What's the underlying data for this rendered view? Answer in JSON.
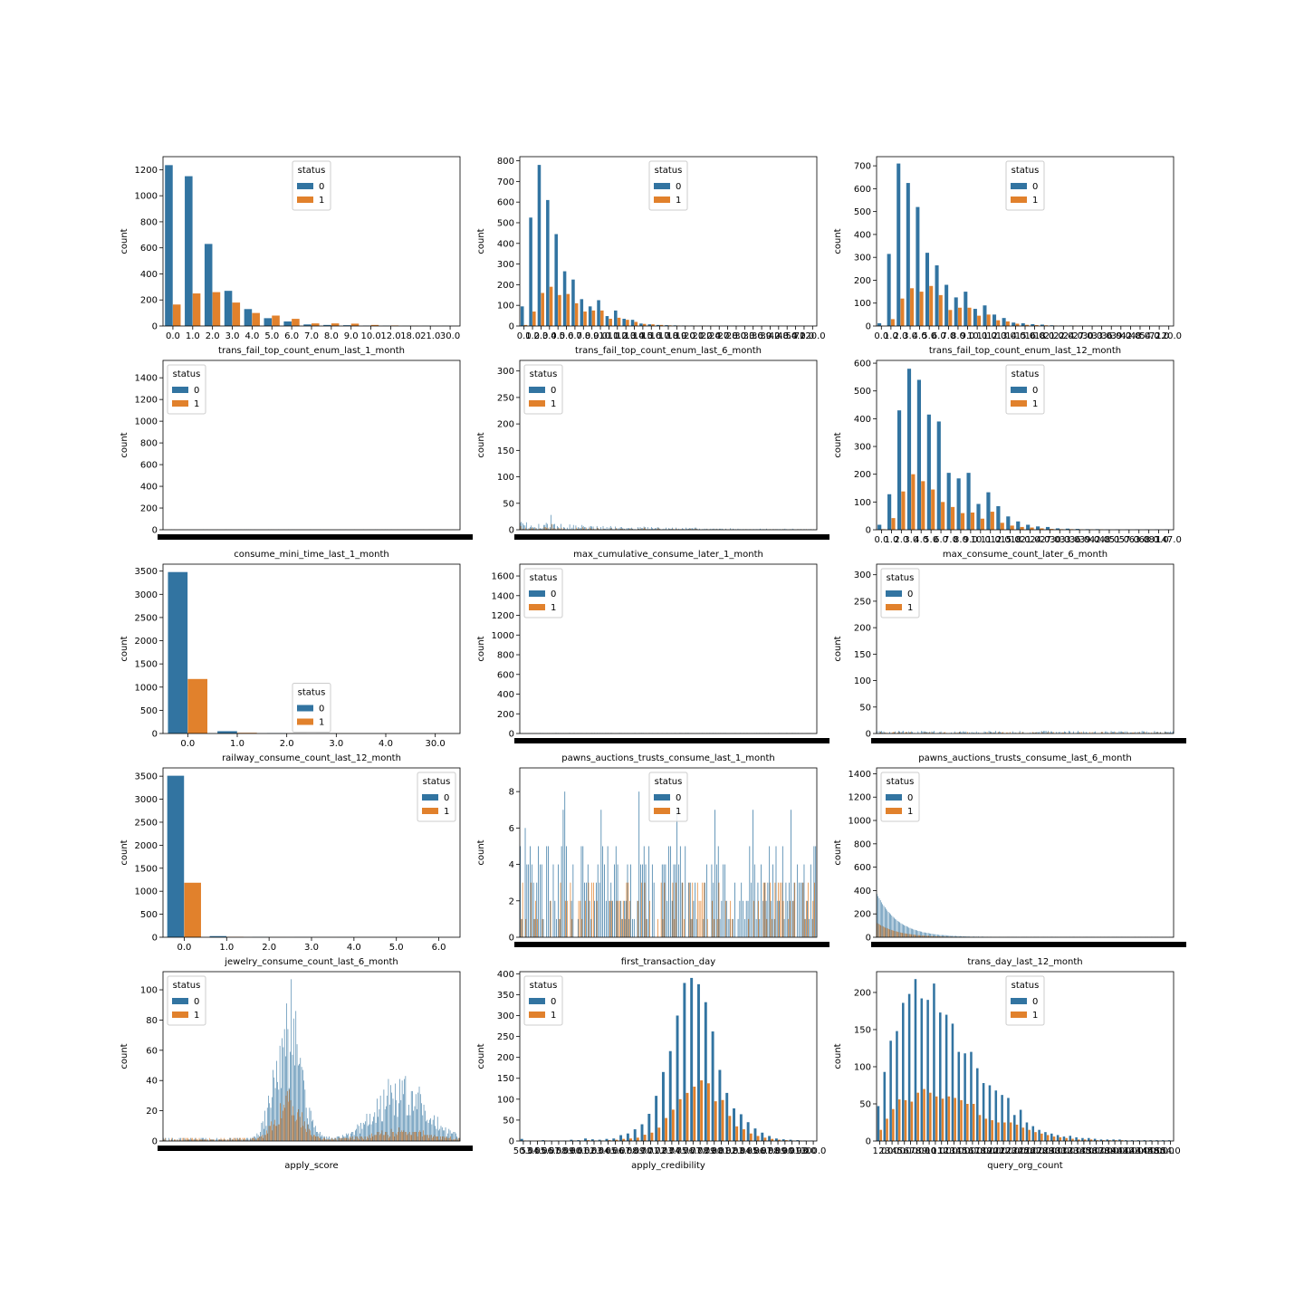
{
  "legend": {
    "title": "status",
    "labels": [
      "0",
      "1"
    ]
  },
  "colors": {
    "s0": "#3274a1",
    "s1": "#e1812c"
  },
  "chart_data": [
    {
      "type": "bar",
      "xlabel": "trans_fail_top_count_enum_last_1_month",
      "ylabel": "count",
      "ylim": [
        0,
        1300
      ],
      "yticks": [
        0,
        200,
        400,
        600,
        800,
        1000,
        1200
      ],
      "legend_loc": "upper-center",
      "categories": [
        "0.0",
        "1.0",
        "2.0",
        "3.0",
        "4.0",
        "5.0",
        "6.0",
        "7.0",
        "8.0",
        "9.0",
        "10.0",
        "12.0",
        "18.0",
        "21.0",
        "30.0"
      ],
      "series": [
        {
          "name": "0",
          "values": [
            1235,
            1150,
            630,
            270,
            130,
            60,
            35,
            12,
            8,
            6,
            3,
            2,
            1,
            1,
            1
          ]
        },
        {
          "name": "1",
          "values": [
            165,
            250,
            260,
            180,
            100,
            80,
            55,
            20,
            20,
            18,
            8,
            4,
            1,
            0,
            0
          ]
        }
      ]
    },
    {
      "type": "bar",
      "xlabel": "trans_fail_top_count_enum_last_6_month",
      "ylabel": "count",
      "ylim": [
        0,
        820
      ],
      "yticks": [
        0,
        100,
        200,
        300,
        400,
        500,
        600,
        700,
        800
      ],
      "legend_loc": "upper-center",
      "categories": [
        "0.0",
        "1.0",
        "2.0",
        "3.0",
        "4.0",
        "5.0",
        "6.0",
        "7.0",
        "8.0",
        "9.0",
        "10.0",
        "11.0",
        "12.0",
        "13.0",
        "14.0",
        "15.0",
        "16.0",
        "17.0",
        "18.0",
        "19.0",
        "20.0",
        "21.0",
        "22.0",
        "24.0",
        "27.0",
        "28.0",
        "30.0",
        "33.0",
        "36.0",
        "39.0",
        "42.0",
        "48.0",
        "54.0",
        "72.0",
        "120.0"
      ],
      "series": [
        {
          "name": "0",
          "values": [
            95,
            525,
            780,
            610,
            445,
            265,
            225,
            130,
            95,
            125,
            48,
            75,
            35,
            30,
            12,
            8,
            5,
            4,
            3,
            2,
            2,
            1,
            1,
            1,
            1,
            1,
            1,
            0,
            0,
            0,
            0,
            0,
            0,
            0,
            0
          ]
        },
        {
          "name": "1",
          "values": [
            5,
            70,
            160,
            190,
            150,
            155,
            110,
            70,
            75,
            75,
            35,
            40,
            30,
            20,
            10,
            8,
            5,
            3,
            2,
            1,
            1,
            1,
            1,
            0,
            0,
            0,
            0,
            0,
            0,
            0,
            0,
            0,
            0,
            0,
            0
          ]
        }
      ]
    },
    {
      "type": "bar",
      "xlabel": "trans_fail_top_count_enum_last_12_month",
      "ylabel": "count",
      "ylim": [
        0,
        740
      ],
      "yticks": [
        0,
        100,
        200,
        300,
        400,
        500,
        600,
        700
      ],
      "legend_loc": "upper-center",
      "categories": [
        "0.0",
        "1.0",
        "2.0",
        "3.0",
        "4.0",
        "5.0",
        "6.0",
        "7.0",
        "8.0",
        "9.0",
        "10.0",
        "11.0",
        "12.0",
        "13.0",
        "14.0",
        "15.0",
        "16.0",
        "18.0",
        "21.0",
        "22.0",
        "24.0",
        "27.0",
        "30.0",
        "33.0",
        "36.0",
        "39.0",
        "42.0",
        "48.0",
        "54.0",
        "72.0",
        "120.0"
      ],
      "series": [
        {
          "name": "0",
          "values": [
            12,
            315,
            710,
            625,
            520,
            320,
            265,
            180,
            125,
            150,
            75,
            90,
            50,
            35,
            15,
            12,
            8,
            6,
            3,
            2,
            2,
            1,
            1,
            1,
            0,
            0,
            0,
            0,
            0,
            0,
            0
          ]
        },
        {
          "name": "1",
          "values": [
            0,
            30,
            120,
            165,
            150,
            175,
            135,
            70,
            80,
            80,
            45,
            50,
            25,
            20,
            10,
            5,
            4,
            3,
            2,
            1,
            1,
            0,
            0,
            0,
            0,
            0,
            0,
            0,
            0,
            0,
            0
          ]
        }
      ]
    },
    {
      "type": "bar",
      "xlabel": "consume_mini_time_last_1_month",
      "ylabel": "count",
      "ylim": [
        0,
        1560
      ],
      "yticks": [
        0,
        200,
        400,
        600,
        800,
        1000,
        1200,
        1400
      ],
      "legend_loc": "upper-left",
      "dense": true,
      "n_categories": 150,
      "peak": [
        1,
        1
      ],
      "tick_overlap": true
    },
    {
      "type": "bar",
      "xlabel": "max_cumulative_consume_later_1_month",
      "ylabel": "count",
      "ylim": [
        0,
        320
      ],
      "yticks": [
        0,
        50,
        100,
        150,
        200,
        250,
        300
      ],
      "legend_loc": "upper-left",
      "dense": true,
      "n_categories": 240,
      "peak": [
        28,
        12
      ],
      "tick_overlap": true
    },
    {
      "type": "bar",
      "xlabel": "max_consume_count_later_6_month",
      "ylabel": "count",
      "ylim": [
        0,
        610
      ],
      "yticks": [
        0,
        100,
        200,
        300,
        400,
        500,
        600
      ],
      "legend_loc": "upper-center",
      "categories": [
        "0.0",
        "1.0",
        "2.0",
        "3.0",
        "4.0",
        "5.0",
        "6.0",
        "7.0",
        "8.0",
        "9.0",
        "10.0",
        "11.0",
        "12.0",
        "15.0",
        "18.0",
        "21.0",
        "24.0",
        "27.0",
        "30.0",
        "33.0",
        "36.0",
        "39.0",
        "42.0",
        "48.0",
        "51.0",
        "57.0",
        "63.0",
        "68.0",
        "81.0",
        "147.0"
      ],
      "series": [
        {
          "name": "0",
          "values": [
            18,
            128,
            430,
            580,
            540,
            415,
            390,
            205,
            185,
            205,
            93,
            135,
            85,
            48,
            30,
            18,
            12,
            10,
            5,
            4,
            3,
            2,
            2,
            1,
            1,
            1,
            1,
            1,
            1,
            1
          ]
        },
        {
          "name": "1",
          "values": [
            2,
            42,
            138,
            200,
            175,
            145,
            100,
            82,
            60,
            62,
            40,
            65,
            25,
            15,
            10,
            8,
            5,
            3,
            2,
            2,
            1,
            1,
            1,
            0,
            0,
            0,
            0,
            0,
            0,
            0
          ]
        }
      ]
    },
    {
      "type": "bar",
      "xlabel": "railway_consume_count_last_12_month",
      "ylabel": "count",
      "ylim": [
        0,
        3650
      ],
      "yticks": [
        0,
        500,
        1000,
        1500,
        2000,
        2500,
        3000,
        3500
      ],
      "legend_loc": "center",
      "categories": [
        "0.0",
        "1.0",
        "2.0",
        "3.0",
        "4.0",
        "30.0"
      ],
      "series": [
        {
          "name": "0",
          "values": [
            3480,
            50,
            5,
            2,
            1,
            1
          ]
        },
        {
          "name": "1",
          "values": [
            1175,
            15,
            2,
            1,
            0,
            0
          ]
        }
      ]
    },
    {
      "type": "bar",
      "xlabel": "pawns_auctions_trusts_consume_last_1_month",
      "ylabel": "count",
      "ylim": [
        0,
        1720
      ],
      "yticks": [
        0,
        200,
        400,
        600,
        800,
        1000,
        1200,
        1400,
        1600
      ],
      "legend_loc": "upper-left",
      "dense": true,
      "n_categories": 220,
      "peak": [
        5,
        3
      ],
      "tick_overlap": true
    },
    {
      "type": "bar",
      "xlabel": "pawns_auctions_trusts_consume_last_6_month",
      "ylabel": "count",
      "ylim": [
        0,
        320
      ],
      "yticks": [
        0,
        50,
        100,
        150,
        200,
        250,
        300
      ],
      "legend_loc": "upper-left",
      "dense": true,
      "n_categories": 260,
      "peak": [
        5,
        3
      ],
      "tick_overlap": true
    },
    {
      "type": "bar",
      "xlabel": "jewelry_consume_count_last_6_month",
      "ylabel": "count",
      "ylim": [
        0,
        3680
      ],
      "yticks": [
        0,
        500,
        1000,
        1500,
        2000,
        2500,
        3000,
        3500
      ],
      "legend_loc": "upper-right",
      "categories": [
        "0.0",
        "1.0",
        "2.0",
        "3.0",
        "4.0",
        "5.0",
        "6.0"
      ],
      "series": [
        {
          "name": "0",
          "values": [
            3510,
            25,
            4,
            2,
            1,
            1,
            1
          ]
        },
        {
          "name": "1",
          "values": [
            1185,
            8,
            1,
            0,
            0,
            0,
            0
          ]
        }
      ]
    },
    {
      "type": "bar",
      "xlabel": "first_transaction_day",
      "ylabel": "count",
      "ylim": [
        0,
        9.3
      ],
      "yticks": [
        0,
        2,
        4,
        6,
        8
      ],
      "legend_loc": "upper-center",
      "dense": true,
      "n_categories": 180,
      "peak": [
        8,
        3
      ],
      "tick_overlap": true
    },
    {
      "type": "bar",
      "xlabel": "trans_day_last_12_month",
      "ylabel": "count",
      "ylim": [
        0,
        1450
      ],
      "yticks": [
        0,
        200,
        400,
        600,
        800,
        1000,
        1200,
        1400
      ],
      "legend_loc": "upper-left",
      "dense": true,
      "n_categories": 260,
      "peak": [
        370,
        120
      ],
      "tick_overlap": true
    },
    {
      "type": "bar",
      "xlabel": "apply_score",
      "ylabel": "count",
      "ylim": [
        0,
        112
      ],
      "yticks": [
        0,
        20,
        40,
        60,
        80,
        100
      ],
      "legend_loc": "upper-left",
      "dense": true,
      "n_categories": 260,
      "peak": [
        107,
        30
      ],
      "tick_overlap": true
    },
    {
      "type": "bar",
      "xlabel": "apply_credibility",
      "ylabel": "count",
      "ylim": [
        0,
        405
      ],
      "yticks": [
        0,
        50,
        100,
        150,
        200,
        250,
        300,
        350,
        400
      ],
      "legend_loc": "upper-left",
      "categories": [
        "50.0",
        "53.0",
        "54.0",
        "55.0",
        "56.0",
        "57.0",
        "58.0",
        "59.0",
        "60.0",
        "61.0",
        "62.0",
        "63.0",
        "64.0",
        "65.0",
        "66.0",
        "67.0",
        "68.0",
        "69.0",
        "70.0",
        "71.0",
        "72.0",
        "73.0",
        "74.0",
        "75.0",
        "76.0",
        "77.0",
        "78.0",
        "79.0",
        "80.0",
        "81.0",
        "82.0",
        "83.0",
        "84.0",
        "85.0",
        "86.0",
        "87.0",
        "88.0",
        "89.0",
        "90.0",
        "91.0",
        "93.0",
        "100.0"
      ],
      "series": [
        {
          "name": "0",
          "values": [
            5,
            1,
            0,
            2,
            1,
            1,
            1,
            3,
            2,
            6,
            4,
            3,
            5,
            6,
            14,
            18,
            28,
            40,
            65,
            108,
            165,
            215,
            300,
            378,
            390,
            375,
            332,
            262,
            170,
            115,
            78,
            64,
            45,
            30,
            20,
            12,
            6,
            4,
            3,
            2,
            1,
            1
          ]
        },
        {
          "name": "1",
          "values": [
            1,
            0,
            1,
            1,
            0,
            0,
            0,
            1,
            1,
            2,
            1,
            1,
            2,
            3,
            5,
            6,
            8,
            15,
            20,
            32,
            55,
            75,
            100,
            115,
            130,
            145,
            138,
            95,
            98,
            60,
            35,
            28,
            18,
            12,
            8,
            5,
            3,
            2,
            1,
            1,
            0,
            0
          ]
        }
      ]
    },
    {
      "type": "bar",
      "xlabel": "query_org_count",
      "ylabel": "count",
      "ylim": [
        0,
        228
      ],
      "yticks": [
        0,
        50,
        100,
        150,
        200
      ],
      "legend_loc": "upper-center",
      "categories": [
        "1.0",
        "2.0",
        "3.0",
        "4.0",
        "5.0",
        "6.0",
        "7.0",
        "8.0",
        "9.0",
        "10.0",
        "11.0",
        "12.0",
        "13.0",
        "14.0",
        "15.0",
        "16.0",
        "17.0",
        "18.0",
        "19.0",
        "20.0",
        "21.0",
        "22.0",
        "23.0",
        "24.0",
        "25.0",
        "26.0",
        "27.0",
        "28.0",
        "29.0",
        "30.0",
        "31.0",
        "32.0",
        "33.0",
        "34.0",
        "35.0",
        "36.0",
        "37.0",
        "38.0",
        "39.0",
        "40.0",
        "41.0",
        "42.0",
        "43.0",
        "44.0",
        "45.0",
        "48.0",
        "50.0",
        "54.0"
      ],
      "series": [
        {
          "name": "0",
          "values": [
            47,
            93,
            135,
            148,
            186,
            198,
            218,
            192,
            190,
            212,
            173,
            170,
            158,
            120,
            118,
            120,
            98,
            78,
            75,
            68,
            62,
            58,
            35,
            42,
            25,
            20,
            15,
            12,
            10,
            8,
            6,
            7,
            5,
            4,
            4,
            3,
            2,
            2,
            2,
            2,
            1,
            1,
            1,
            1,
            1,
            1,
            1,
            1
          ]
        },
        {
          "name": "1",
          "values": [
            15,
            30,
            43,
            56,
            55,
            53,
            65,
            70,
            65,
            60,
            57,
            60,
            58,
            55,
            50,
            50,
            35,
            30,
            28,
            25,
            25,
            25,
            22,
            18,
            15,
            12,
            10,
            8,
            6,
            5,
            4,
            3,
            2,
            2,
            2,
            1,
            1,
            1,
            1,
            1,
            0,
            0,
            0,
            0,
            0,
            0,
            0,
            0
          ]
        }
      ]
    }
  ]
}
